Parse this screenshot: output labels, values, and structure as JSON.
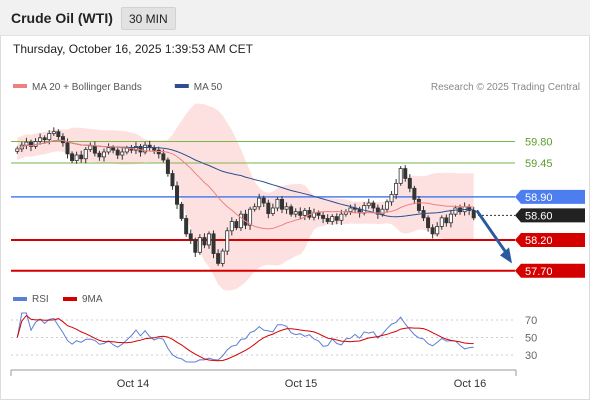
{
  "header": {
    "title": "Crude Oil (WTI)",
    "timeframe": "30 MIN"
  },
  "datetime": "Thursday, October 16, 2025 1:39:53 AM CET",
  "legend": {
    "items": [
      {
        "label": "MA 20 + Bollinger Bands",
        "color": "#f08080"
      },
      {
        "label": "MA 50",
        "color": "#2b4f8f"
      }
    ],
    "credit": "Research © 2025 Trading Central"
  },
  "rsi_legend": {
    "items": [
      {
        "label": "RSI",
        "color": "#5b7fd6"
      },
      {
        "label": "9MA",
        "color": "#d40000"
      }
    ]
  },
  "chart_data": [
    {
      "type": "candlestick",
      "ylim": [
        57.5,
        60.2
      ],
      "x_ticks": [
        "Oct 14",
        "Oct 15",
        "Oct 16"
      ],
      "levels": [
        {
          "value": 59.8,
          "label": "59.80",
          "style": "resistance-thin",
          "color": "#7ab648"
        },
        {
          "value": 59.45,
          "label": "59.45",
          "style": "resistance-thin",
          "color": "#7ab648"
        },
        {
          "value": 58.9,
          "label": "58.90",
          "style": "pivot",
          "color": "#4d7ef0"
        },
        {
          "value": 58.6,
          "label": "58.60",
          "style": "last-price",
          "color": "#222222"
        },
        {
          "value": 58.2,
          "label": "58.20",
          "style": "support",
          "color": "#d40000"
        },
        {
          "value": 57.7,
          "label": "57.70",
          "style": "support",
          "color": "#d40000"
        }
      ],
      "projection": {
        "from": 58.68,
        "to": 57.82,
        "color": "#2b5aa0"
      },
      "closes": [
        59.68,
        59.74,
        59.79,
        59.72,
        59.8,
        59.86,
        59.83,
        59.93,
        59.96,
        59.88,
        59.78,
        59.6,
        59.49,
        59.58,
        59.52,
        59.67,
        59.73,
        59.61,
        59.55,
        59.63,
        59.7,
        59.66,
        59.58,
        59.63,
        59.69,
        59.66,
        59.72,
        59.63,
        59.74,
        59.7,
        59.66,
        59.6,
        59.5,
        59.28,
        59.08,
        58.78,
        58.55,
        58.3,
        58.2,
        58.0,
        58.24,
        58.12,
        58.3,
        57.98,
        57.82,
        58.02,
        58.35,
        58.5,
        58.4,
        58.62,
        58.44,
        58.7,
        58.74,
        58.88,
        58.8,
        58.63,
        58.72,
        58.86,
        58.7,
        58.74,
        58.62,
        58.66,
        58.6,
        58.68,
        58.57,
        58.64,
        58.6,
        58.55,
        58.5,
        58.58,
        58.52,
        58.62,
        58.66,
        58.72,
        58.7,
        58.64,
        58.76,
        58.8,
        58.72,
        58.62,
        58.7,
        58.82,
        58.94,
        59.12,
        59.36,
        59.2,
        59.04,
        58.86,
        58.68,
        58.56,
        58.4,
        58.3,
        58.42,
        58.56,
        58.48,
        58.62,
        58.72,
        58.66,
        58.74,
        58.68,
        58.56
      ],
      "rsi": {
        "levels": [
          70,
          50,
          30
        ],
        "series": [
          {
            "name": "RSI",
            "color": "#5b7fd6"
          },
          {
            "name": "9MA",
            "color": "#d40000"
          }
        ]
      }
    }
  ]
}
